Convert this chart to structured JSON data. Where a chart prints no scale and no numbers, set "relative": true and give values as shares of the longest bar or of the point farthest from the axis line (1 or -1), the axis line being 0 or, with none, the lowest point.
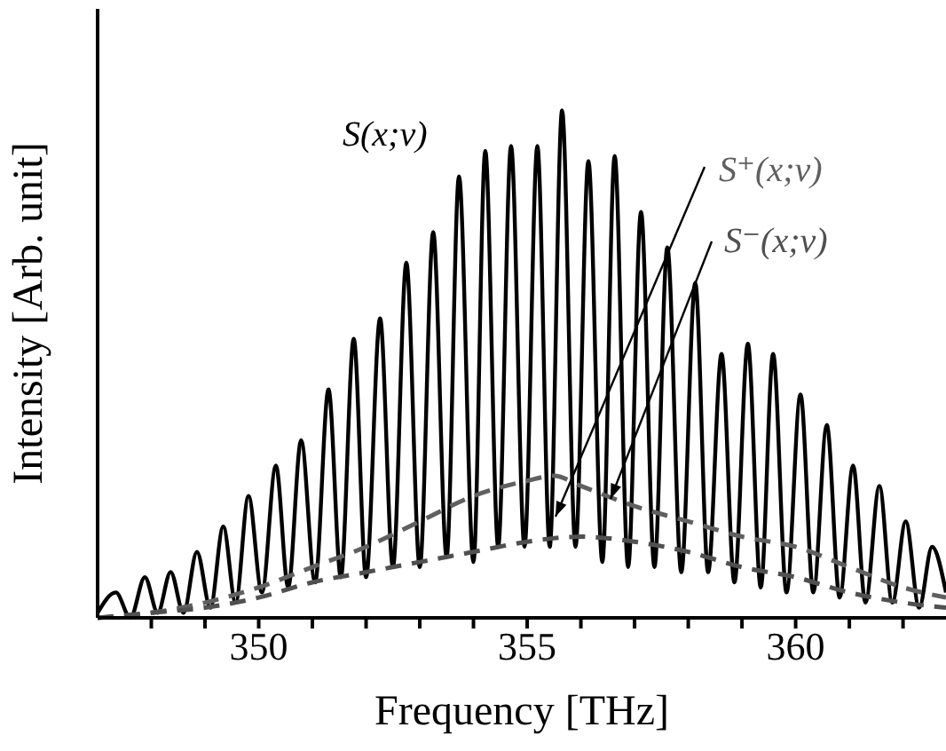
{
  "chart_data": {
    "type": "line",
    "relative": true,
    "xlabel": "Frequency [THz]",
    "ylabel": "Intensity [Arb. unit]",
    "xlim": [
      347,
      362.8
    ],
    "xticks": [
      {
        "value": 348,
        "label": null
      },
      {
        "value": 349,
        "label": null
      },
      350,
      {
        "value": 351,
        "label": null
      },
      {
        "value": 352,
        "label": null
      },
      {
        "value": 353,
        "label": null
      },
      {
        "value": 354,
        "label": null
      },
      355,
      {
        "value": 356,
        "label": null
      },
      {
        "value": 357,
        "label": null
      },
      {
        "value": 358,
        "label": null
      },
      {
        "value": 359,
        "label": null
      },
      360,
      {
        "value": 361,
        "label": null
      },
      {
        "value": 362,
        "label": null
      }
    ],
    "marker": "none",
    "series": [
      {
        "name": "S(x;ν)",
        "color": "#000000",
        "line_style": "solid",
        "x": [
          347.0,
          347.34,
          347.61,
          347.88,
          348.12,
          348.36,
          348.6,
          348.85,
          349.1,
          349.34,
          349.57,
          349.81,
          350.06,
          350.32,
          350.55,
          350.79,
          351.05,
          351.3,
          351.53,
          351.77,
          352.0,
          352.26,
          352.5,
          352.75,
          353.0,
          353.25,
          353.5,
          353.73,
          354.0,
          354.22,
          354.46,
          354.7,
          354.95,
          355.19,
          355.42,
          355.65,
          355.9,
          356.14,
          356.4,
          356.63,
          356.88,
          357.12,
          357.37,
          357.61,
          357.87,
          358.13,
          358.37,
          358.62,
          358.86,
          359.11,
          359.35,
          359.58,
          359.83,
          360.09,
          360.33,
          360.58,
          360.82,
          361.07,
          361.3,
          361.56,
          361.8,
          362.05,
          362.3,
          362.54,
          362.8
        ],
        "values": [
          0.01,
          0.05,
          0.0,
          0.08,
          0.01,
          0.09,
          0.01,
          0.13,
          0.02,
          0.18,
          0.03,
          0.24,
          0.05,
          0.3,
          0.06,
          0.35,
          0.07,
          0.45,
          0.08,
          0.55,
          0.08,
          0.59,
          0.1,
          0.7,
          0.1,
          0.76,
          0.12,
          0.87,
          0.11,
          0.92,
          0.14,
          0.93,
          0.14,
          0.93,
          0.14,
          1.0,
          0.14,
          0.9,
          0.11,
          0.91,
          0.1,
          0.8,
          0.1,
          0.73,
          0.09,
          0.66,
          0.09,
          0.52,
          0.07,
          0.54,
          0.06,
          0.52,
          0.05,
          0.44,
          0.05,
          0.38,
          0.04,
          0.3,
          0.03,
          0.26,
          0.03,
          0.19,
          0.02,
          0.14,
          0.05
        ]
      },
      {
        "name": "S⁺(x;ν)",
        "color": "#606060",
        "line_style": "dashed",
        "x": [
          347,
          348,
          349,
          350,
          351,
          352,
          353,
          354,
          355,
          355.5,
          356,
          357,
          358,
          359,
          360,
          361,
          362,
          362.8
        ],
        "values": [
          0.0,
          0.01,
          0.03,
          0.06,
          0.1,
          0.14,
          0.19,
          0.24,
          0.27,
          0.28,
          0.26,
          0.22,
          0.19,
          0.16,
          0.14,
          0.1,
          0.06,
          0.04
        ]
      },
      {
        "name": "S⁻(x;ν)",
        "color": "#505050",
        "line_style": "dashed",
        "x": [
          347,
          348,
          349,
          350,
          351,
          352,
          353,
          354,
          355,
          356,
          357,
          358,
          359,
          360,
          361,
          362,
          362.8
        ],
        "values": [
          0.0,
          0.01,
          0.02,
          0.04,
          0.07,
          0.09,
          0.11,
          0.13,
          0.15,
          0.16,
          0.15,
          0.13,
          0.1,
          0.08,
          0.05,
          0.03,
          0.02
        ]
      }
    ]
  }
}
